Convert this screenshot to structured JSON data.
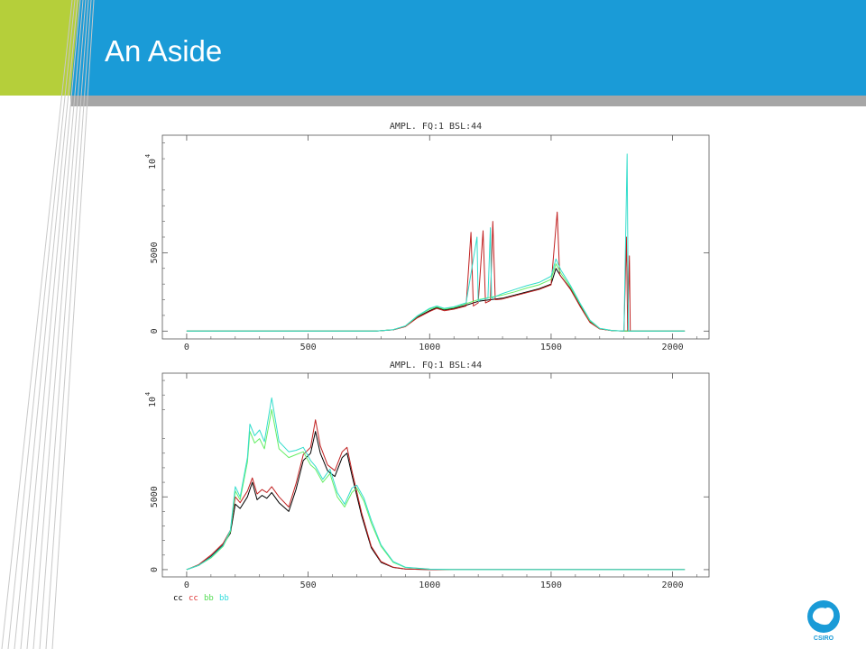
{
  "slide": {
    "title": "An Aside"
  },
  "brand": {
    "banner_color": "#1a9bd7",
    "accent_color": "#b5cf3a",
    "bar_color": "#a6a6a6",
    "logo_text": "CSIRO"
  },
  "chart_data": [
    {
      "type": "line",
      "title": "AMPL. FQ:1 BSL:44",
      "xlim": [
        -100,
        2150
      ],
      "ylim": [
        -500,
        12500
      ],
      "y_scale_label": "10",
      "y_scale_exponent": "4",
      "xticks": [
        0,
        500,
        1000,
        1500,
        2000
      ],
      "yticks": [
        0,
        5000
      ],
      "series": [
        {
          "color": "#000000",
          "points": [
            [
              0,
              0
            ],
            [
              780,
              0
            ],
            [
              850,
              80
            ],
            [
              900,
              300
            ],
            [
              950,
              900
            ],
            [
              1000,
              1300
            ],
            [
              1030,
              1500
            ],
            [
              1060,
              1350
            ],
            [
              1100,
              1450
            ],
            [
              1150,
              1650
            ],
            [
              1200,
              1900
            ],
            [
              1250,
              2000
            ],
            [
              1300,
              2100
            ],
            [
              1350,
              2300
            ],
            [
              1400,
              2500
            ],
            [
              1450,
              2700
            ],
            [
              1500,
              3000
            ],
            [
              1520,
              4000
            ],
            [
              1540,
              3500
            ],
            [
              1580,
              2700
            ],
            [
              1620,
              1600
            ],
            [
              1660,
              600
            ],
            [
              1700,
              150
            ],
            [
              1750,
              30
            ],
            [
              1800,
              0
            ],
            [
              2050,
              0
            ]
          ]
        },
        {
          "color": "#c02020",
          "points": [
            [
              0,
              0
            ],
            [
              780,
              0
            ],
            [
              850,
              80
            ],
            [
              900,
              280
            ],
            [
              950,
              850
            ],
            [
              1000,
              1250
            ],
            [
              1030,
              1450
            ],
            [
              1060,
              1300
            ],
            [
              1100,
              1400
            ],
            [
              1150,
              1600
            ],
            [
              1170,
              6300
            ],
            [
              1180,
              1600
            ],
            [
              1200,
              1800
            ],
            [
              1220,
              6400
            ],
            [
              1230,
              1800
            ],
            [
              1250,
              1950
            ],
            [
              1260,
              7000
            ],
            [
              1270,
              2000
            ],
            [
              1300,
              2050
            ],
            [
              1350,
              2250
            ],
            [
              1400,
              2450
            ],
            [
              1450,
              2650
            ],
            [
              1500,
              2950
            ],
            [
              1525,
              7600
            ],
            [
              1535,
              3600
            ],
            [
              1580,
              2650
            ],
            [
              1620,
              1550
            ],
            [
              1660,
              550
            ],
            [
              1700,
              140
            ],
            [
              1750,
              30
            ],
            [
              1800,
              0
            ],
            [
              1810,
              6000
            ],
            [
              1815,
              0
            ],
            [
              1822,
              4800
            ],
            [
              1826,
              0
            ],
            [
              2050,
              0
            ]
          ]
        },
        {
          "color": "#66ee66",
          "points": [
            [
              0,
              0
            ],
            [
              780,
              0
            ],
            [
              850,
              90
            ],
            [
              900,
              320
            ],
            [
              950,
              950
            ],
            [
              1000,
              1400
            ],
            [
              1030,
              1550
            ],
            [
              1060,
              1400
            ],
            [
              1100,
              1500
            ],
            [
              1150,
              1750
            ],
            [
              1200,
              2000
            ],
            [
              1250,
              2150
            ],
            [
              1300,
              2300
            ],
            [
              1350,
              2500
            ],
            [
              1400,
              2750
            ],
            [
              1450,
              2950
            ],
            [
              1500,
              3300
            ],
            [
              1520,
              4300
            ],
            [
              1540,
              3700
            ],
            [
              1580,
              2800
            ],
            [
              1620,
              1700
            ],
            [
              1660,
              650
            ],
            [
              1700,
              170
            ],
            [
              1750,
              40
            ],
            [
              1800,
              0
            ],
            [
              2050,
              0
            ]
          ]
        },
        {
          "color": "#33ddcc",
          "points": [
            [
              0,
              0
            ],
            [
              780,
              0
            ],
            [
              850,
              90
            ],
            [
              900,
              330
            ],
            [
              950,
              980
            ],
            [
              1000,
              1450
            ],
            [
              1030,
              1600
            ],
            [
              1060,
              1450
            ],
            [
              1100,
              1550
            ],
            [
              1150,
              1800
            ],
            [
              1195,
              6000
            ],
            [
              1200,
              1900
            ],
            [
              1210,
              2000
            ],
            [
              1240,
              2100
            ],
            [
              1250,
              6600
            ],
            [
              1255,
              2100
            ],
            [
              1300,
              2400
            ],
            [
              1350,
              2650
            ],
            [
              1400,
              2900
            ],
            [
              1450,
              3100
            ],
            [
              1500,
              3500
            ],
            [
              1520,
              4600
            ],
            [
              1540,
              3900
            ],
            [
              1580,
              2900
            ],
            [
              1620,
              1750
            ],
            [
              1660,
              700
            ],
            [
              1700,
              180
            ],
            [
              1750,
              40
            ],
            [
              1800,
              0
            ],
            [
              1813,
              11300
            ],
            [
              1818,
              0
            ],
            [
              2050,
              0
            ]
          ]
        }
      ]
    },
    {
      "type": "line",
      "title": "AMPL. FQ:1 BSL:44",
      "xlim": [
        -100,
        2150
      ],
      "ylim": [
        -500,
        13500
      ],
      "y_scale_label": "10",
      "y_scale_exponent": "4",
      "xticks": [
        0,
        500,
        1000,
        1500,
        2000
      ],
      "yticks": [
        0,
        5000
      ],
      "series": [
        {
          "color": "#000000",
          "points": [
            [
              0,
              0
            ],
            [
              50,
              300
            ],
            [
              100,
              900
            ],
            [
              150,
              1700
            ],
            [
              180,
              2500
            ],
            [
              200,
              4500
            ],
            [
              220,
              4200
            ],
            [
              250,
              5000
            ],
            [
              270,
              6000
            ],
            [
              290,
              4800
            ],
            [
              310,
              5100
            ],
            [
              330,
              4900
            ],
            [
              350,
              5300
            ],
            [
              380,
              4600
            ],
            [
              420,
              4000
            ],
            [
              450,
              5500
            ],
            [
              480,
              7500
            ],
            [
              510,
              8000
            ],
            [
              530,
              9500
            ],
            [
              550,
              8000
            ],
            [
              580,
              6800
            ],
            [
              610,
              6400
            ],
            [
              640,
              7700
            ],
            [
              660,
              8000
            ],
            [
              680,
              6500
            ],
            [
              720,
              3700
            ],
            [
              760,
              1500
            ],
            [
              800,
              500
            ],
            [
              850,
              150
            ],
            [
              900,
              40
            ],
            [
              1000,
              0
            ],
            [
              2050,
              0
            ]
          ]
        },
        {
          "color": "#c02020",
          "points": [
            [
              0,
              0
            ],
            [
              50,
              350
            ],
            [
              100,
              1000
            ],
            [
              150,
              1800
            ],
            [
              180,
              2700
            ],
            [
              200,
              5000
            ],
            [
              220,
              4600
            ],
            [
              250,
              5400
            ],
            [
              270,
              6300
            ],
            [
              290,
              5200
            ],
            [
              310,
              5500
            ],
            [
              330,
              5300
            ],
            [
              350,
              5700
            ],
            [
              380,
              5000
            ],
            [
              420,
              4300
            ],
            [
              450,
              5900
            ],
            [
              480,
              7900
            ],
            [
              510,
              8400
            ],
            [
              530,
              10300
            ],
            [
              550,
              8500
            ],
            [
              580,
              7200
            ],
            [
              610,
              6800
            ],
            [
              640,
              8100
            ],
            [
              660,
              8400
            ],
            [
              680,
              6800
            ],
            [
              720,
              3900
            ],
            [
              760,
              1600
            ],
            [
              800,
              550
            ],
            [
              850,
              160
            ],
            [
              900,
              40
            ],
            [
              1000,
              0
            ],
            [
              2050,
              0
            ]
          ]
        },
        {
          "color": "#66ee66",
          "points": [
            [
              0,
              0
            ],
            [
              50,
              300
            ],
            [
              100,
              800
            ],
            [
              150,
              1600
            ],
            [
              180,
              2600
            ],
            [
              200,
              5400
            ],
            [
              220,
              4800
            ],
            [
              250,
              7400
            ],
            [
              260,
              9500
            ],
            [
              280,
              8700
            ],
            [
              300,
              9000
            ],
            [
              320,
              8300
            ],
            [
              350,
              11000
            ],
            [
              380,
              8300
            ],
            [
              420,
              7700
            ],
            [
              450,
              7900
            ],
            [
              480,
              8100
            ],
            [
              510,
              7200
            ],
            [
              530,
              6900
            ],
            [
              560,
              6000
            ],
            [
              590,
              6600
            ],
            [
              620,
              5000
            ],
            [
              650,
              4300
            ],
            [
              680,
              5300
            ],
            [
              700,
              5600
            ],
            [
              730,
              4700
            ],
            [
              760,
              3200
            ],
            [
              800,
              1600
            ],
            [
              850,
              500
            ],
            [
              900,
              150
            ],
            [
              1000,
              30
            ],
            [
              1100,
              0
            ],
            [
              2050,
              0
            ]
          ]
        },
        {
          "color": "#33ddcc",
          "points": [
            [
              0,
              0
            ],
            [
              50,
              300
            ],
            [
              100,
              850
            ],
            [
              150,
              1650
            ],
            [
              180,
              2700
            ],
            [
              200,
              5700
            ],
            [
              220,
              5000
            ],
            [
              250,
              7700
            ],
            [
              260,
              10000
            ],
            [
              280,
              9200
            ],
            [
              300,
              9600
            ],
            [
              320,
              8800
            ],
            [
              350,
              11800
            ],
            [
              380,
              8800
            ],
            [
              420,
              8100
            ],
            [
              450,
              8200
            ],
            [
              480,
              8400
            ],
            [
              510,
              7500
            ],
            [
              530,
              7100
            ],
            [
              560,
              6200
            ],
            [
              590,
              6900
            ],
            [
              620,
              5300
            ],
            [
              650,
              4500
            ],
            [
              680,
              5600
            ],
            [
              700,
              5800
            ],
            [
              730,
              4900
            ],
            [
              760,
              3400
            ],
            [
              800,
              1700
            ],
            [
              850,
              550
            ],
            [
              900,
              170
            ],
            [
              1000,
              35
            ],
            [
              1100,
              0
            ],
            [
              2050,
              0
            ]
          ]
        }
      ],
      "legend_labels": [
        {
          "text": "cc",
          "color": "#000000"
        },
        {
          "text": "cc",
          "color": "#dd3333"
        },
        {
          "text": "bb",
          "color": "#55dd55"
        },
        {
          "text": "bb",
          "color": "#33dddd"
        }
      ]
    }
  ]
}
